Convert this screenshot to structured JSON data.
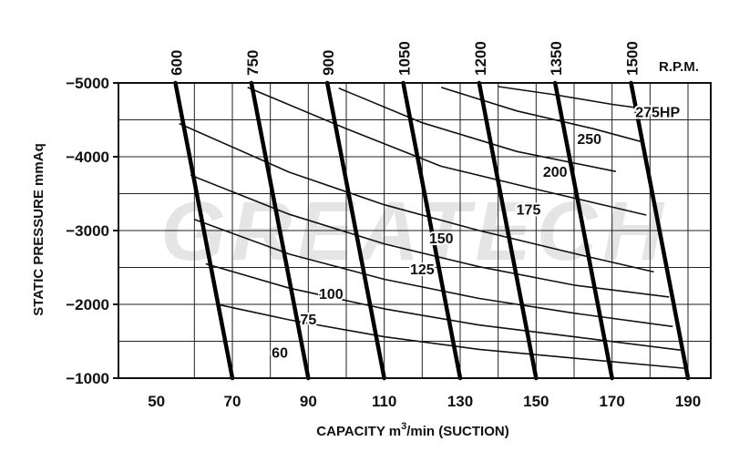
{
  "chart_data": {
    "type": "line",
    "title": "",
    "xlabel": "CAPACITY m3/min (SUCTION)",
    "xlabel_parts": {
      "prefix": "CAPACITY m",
      "superscript": "3",
      "suffix": "/min (SUCTION)"
    },
    "ylabel": "STATIC PRESSURE mmAq",
    "xlim": [
      40,
      196
    ],
    "ylim": [
      -1000,
      -5000
    ],
    "x_ticks": [
      50,
      70,
      90,
      110,
      130,
      150,
      170,
      190
    ],
    "y_ticks": [
      -5000,
      -4000,
      -3000,
      -2000,
      -1000
    ],
    "x_tick_labels": [
      "50",
      "70",
      "90",
      "110",
      "130",
      "150",
      "170",
      "190"
    ],
    "y_tick_labels": [
      "−5000",
      "−4000",
      "−3000",
      "−2000",
      "−1000"
    ],
    "grid": true,
    "watermark": "GREATECH",
    "rpm_label": "R.P.M.",
    "rpm_series": [
      {
        "name": "600",
        "points": [
          [
            55,
            -5000
          ],
          [
            70,
            -1000
          ]
        ]
      },
      {
        "name": "750",
        "points": [
          [
            75,
            -5000
          ],
          [
            90,
            -1000
          ]
        ]
      },
      {
        "name": "900",
        "points": [
          [
            95,
            -5000
          ],
          [
            110,
            -1000
          ]
        ]
      },
      {
        "name": "1050",
        "points": [
          [
            115,
            -5000
          ],
          [
            130,
            -1000
          ]
        ]
      },
      {
        "name": "1200",
        "points": [
          [
            135,
            -5000
          ],
          [
            150,
            -1000
          ]
        ]
      },
      {
        "name": "1350",
        "points": [
          [
            155,
            -5000
          ],
          [
            170,
            -1000
          ]
        ]
      },
      {
        "name": "1500",
        "points": [
          [
            175,
            -5000
          ],
          [
            190,
            -1000
          ]
        ]
      }
    ],
    "hp_series": [
      {
        "name": "60",
        "points": [
          [
            66,
            -2000
          ],
          [
            85,
            -1790
          ],
          [
            110,
            -1560
          ],
          [
            135,
            -1390
          ],
          [
            160,
            -1270
          ],
          [
            190,
            -1130
          ]
        ]
      },
      {
        "name": "75",
        "points": [
          [
            63,
            -2550
          ],
          [
            85,
            -2220
          ],
          [
            110,
            -1940
          ],
          [
            135,
            -1720
          ],
          [
            160,
            -1560
          ],
          [
            188,
            -1380
          ]
        ]
      },
      {
        "name": "100",
        "points": [
          [
            60,
            -3150
          ],
          [
            85,
            -2680
          ],
          [
            110,
            -2340
          ],
          [
            135,
            -2080
          ],
          [
            160,
            -1880
          ],
          [
            186,
            -1700
          ]
        ]
      },
      {
        "name": "125",
        "points": [
          [
            59,
            -3750
          ],
          [
            85,
            -3220
          ],
          [
            110,
            -2820
          ],
          [
            135,
            -2510
          ],
          [
            160,
            -2260
          ],
          [
            185,
            -2100
          ]
        ]
      },
      {
        "name": "150",
        "points": [
          [
            56,
            -4450
          ],
          [
            85,
            -3790
          ],
          [
            110,
            -3350
          ],
          [
            135,
            -3000
          ],
          [
            160,
            -2690
          ],
          [
            181,
            -2440
          ]
        ]
      },
      {
        "name": "175",
        "points": [
          [
            74,
            -4940
          ],
          [
            100,
            -4380
          ],
          [
            125,
            -3870
          ],
          [
            150,
            -3560
          ],
          [
            179,
            -3210
          ]
        ]
      },
      {
        "name": "200",
        "points": [
          [
            98,
            -4930
          ],
          [
            120,
            -4460
          ],
          [
            145,
            -4070
          ],
          [
            171,
            -3800
          ]
        ]
      },
      {
        "name": "250",
        "points": [
          [
            125,
            -4940
          ],
          [
            145,
            -4620
          ],
          [
            165,
            -4380
          ],
          [
            178,
            -4200
          ]
        ]
      },
      {
        "name": "275HP",
        "points": [
          [
            140,
            -4950
          ],
          [
            155,
            -4840
          ],
          [
            170,
            -4710
          ],
          [
            180,
            -4640
          ]
        ]
      }
    ],
    "hp_label_positions": [
      {
        "name": "60",
        "x": 82.5,
        "y": -1350
      },
      {
        "name": "75",
        "x": 90,
        "y": -1800
      },
      {
        "name": "100",
        "x": 96,
        "y": -2150
      },
      {
        "name": "125",
        "x": 120,
        "y": -2480
      },
      {
        "name": "150",
        "x": 125,
        "y": -2900
      },
      {
        "name": "175",
        "x": 148,
        "y": -3290
      },
      {
        "name": "200",
        "x": 155,
        "y": -3800
      },
      {
        "name": "250",
        "x": 164,
        "y": -4250
      },
      {
        "name": "275HP",
        "x": 182,
        "y": -4610
      }
    ]
  }
}
